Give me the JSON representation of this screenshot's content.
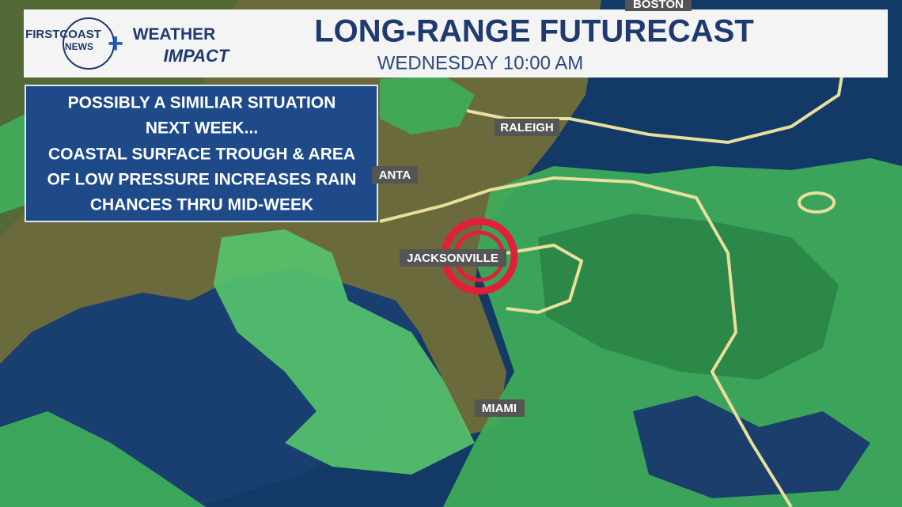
{
  "header": {
    "title": "LONG-RANGE FUTURECAST",
    "subtitle": "WEDNESDAY 10:00 AM",
    "logo": {
      "station_top": "FIRSTCOAST",
      "station_bottom": "NEWS",
      "brand_top": "WEATHER",
      "brand_bottom": "IMPACT"
    }
  },
  "info_box": {
    "lines": [
      "POSSIBLY A SIMILIAR SITUATION",
      "NEXT WEEK...",
      "COASTAL SURFACE TROUGH & AREA",
      "OF LOW PRESSURE INCREASES RAIN",
      "CHANCES THRU MID-WEEK"
    ]
  },
  "cities": [
    "BOSTON",
    "RALEIGH",
    "ANTA",
    "JACKSONVILLE",
    "MIAMI"
  ]
}
